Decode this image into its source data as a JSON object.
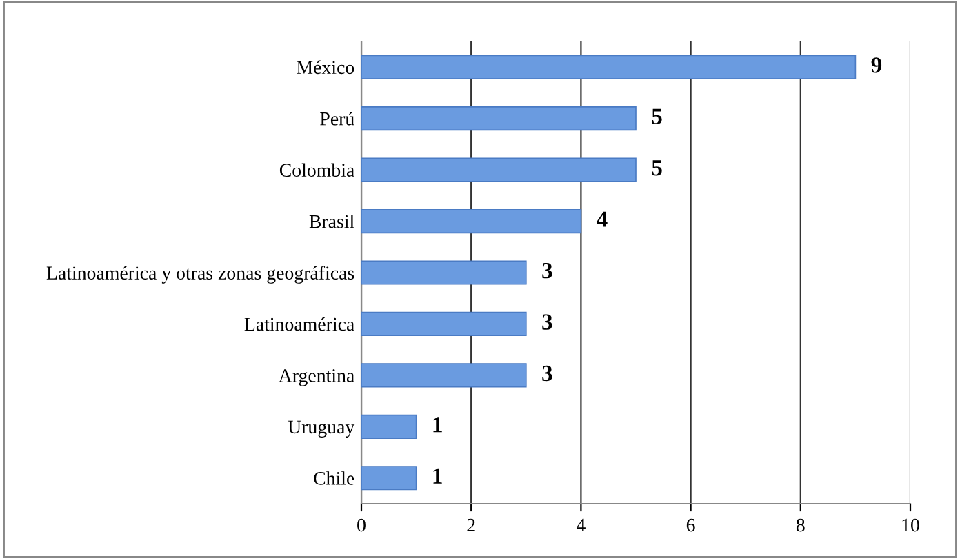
{
  "chart_data": {
    "type": "bar",
    "orientation": "horizontal",
    "categories": [
      "México",
      "Perú",
      "Colombia",
      "Brasil",
      "Latinoamérica y otras zonas geográficas",
      "Latinoamérica",
      "Argentina",
      "Uruguay",
      "Chile"
    ],
    "values": [
      9,
      5,
      5,
      4,
      3,
      3,
      3,
      1,
      1
    ],
    "color": "#6a9be0",
    "xlim": [
      0,
      10
    ],
    "xticks": [
      0,
      2,
      4,
      6,
      8,
      10
    ],
    "grid": "x",
    "data_labels": true
  }
}
